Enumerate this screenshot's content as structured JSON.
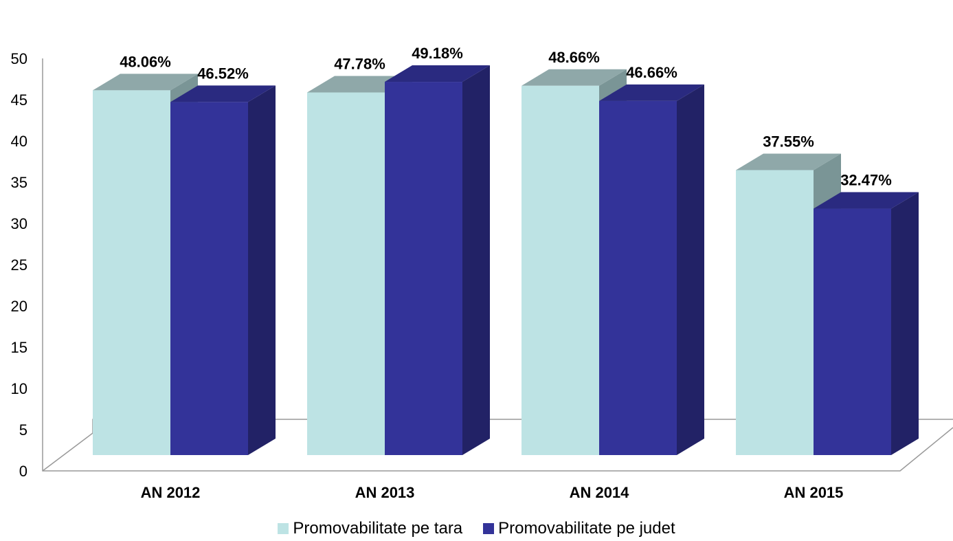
{
  "chart_data": {
    "type": "bar",
    "style": "3d-clustered-column",
    "categories": [
      "AN 2012",
      "AN 2013",
      "AN 2014",
      "AN 2015"
    ],
    "series": [
      {
        "name": "Promovabilitate pe tara",
        "values": [
          48.06,
          47.78,
          48.66,
          37.55
        ],
        "labels": [
          "48.06%",
          "47.78%",
          "48.66%",
          "37.55%"
        ],
        "color": "#BDE3E4",
        "top_color": "#8FA8A9",
        "side_color": "#7A9596"
      },
      {
        "name": "Promovabilitate pe judet",
        "values": [
          46.52,
          49.18,
          46.66,
          32.47
        ],
        "labels": [
          "46.52%",
          "49.18%",
          "46.66%",
          "32.47%"
        ],
        "color": "#333399",
        "top_color": "#2A2A80",
        "side_color": "#222266"
      }
    ],
    "y_ticks": [
      "0",
      "5",
      "10",
      "15",
      "20",
      "25",
      "30",
      "35",
      "40",
      "45",
      "50"
    ],
    "ylim": [
      0,
      50
    ],
    "grid": false,
    "legend_position": "bottom",
    "title": "",
    "xlabel": "",
    "ylabel": ""
  }
}
